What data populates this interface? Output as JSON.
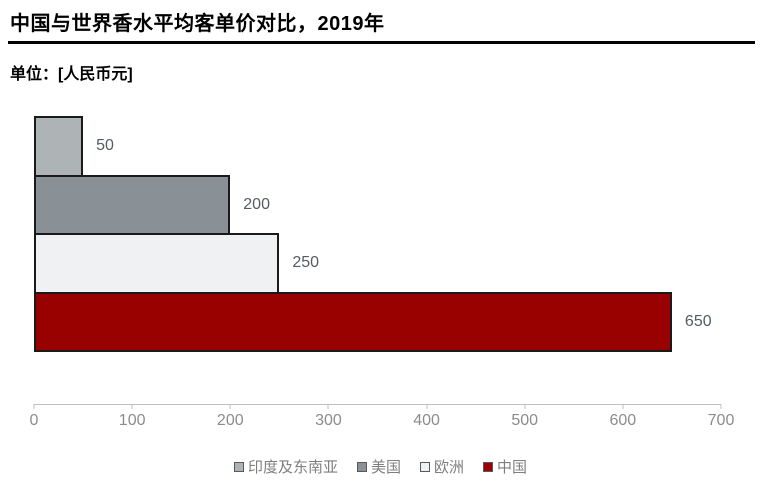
{
  "header": {
    "title": "中国与世界香水平均客单价对比，2019年",
    "unit_label": "单位：[人民币元]"
  },
  "chart_data": {
    "type": "bar",
    "orientation": "horizontal",
    "title": "中国与世界香水平均客单价对比，2019年",
    "unit": "人民币元",
    "categories": [
      "印度及东南亚",
      "美国",
      "欧洲",
      "中国"
    ],
    "values": [
      50,
      200,
      250,
      650
    ],
    "value_labels": [
      "50",
      "200",
      "250",
      "650"
    ],
    "colors": [
      "#aeb3b6",
      "#8a9196",
      "#f0f1f2",
      "#990000"
    ],
    "bar_border_color": "#1a1a1a",
    "xlabel": "",
    "ylabel": "",
    "xlim": [
      0,
      700
    ],
    "x_ticks": [
      "0",
      "100",
      "200",
      "300",
      "400",
      "500",
      "600",
      "700"
    ],
    "grid": false,
    "legend_position": "bottom"
  },
  "legend": {
    "items": [
      {
        "label": "印度及东南亚",
        "color": "#aeb3b6"
      },
      {
        "label": "美国",
        "color": "#8a9196"
      },
      {
        "label": "欧洲",
        "color": "#f0f1f2"
      },
      {
        "label": "中国",
        "color": "#990000"
      }
    ]
  }
}
